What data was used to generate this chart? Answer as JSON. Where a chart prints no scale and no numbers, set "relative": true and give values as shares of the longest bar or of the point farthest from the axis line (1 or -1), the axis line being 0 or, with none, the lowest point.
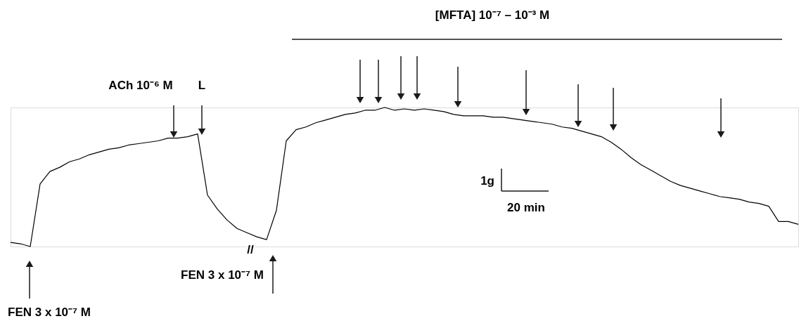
{
  "chart_data": {
    "type": "line",
    "relative": true,
    "color": "#000000",
    "categories": [
      null,
      null,
      null,
      null,
      null,
      null,
      null,
      null,
      null,
      null,
      null,
      null,
      null,
      null,
      null,
      null,
      null,
      null,
      null,
      null,
      null,
      null,
      null,
      null,
      null,
      null,
      null,
      null,
      null,
      null,
      null,
      null,
      null,
      null,
      null,
      null,
      null,
      null,
      null,
      null,
      null,
      null,
      null,
      null,
      null,
      null,
      null,
      null,
      null,
      null,
      null,
      null,
      null,
      null,
      null,
      null,
      null,
      null,
      null,
      null,
      null,
      null,
      null,
      null,
      null,
      null,
      null,
      null,
      null,
      null,
      null,
      null,
      null,
      null,
      null,
      null,
      null,
      null,
      null,
      null,
      null
    ],
    "values": [
      0.03,
      0.02,
      0,
      0.45,
      0.54,
      0.57,
      0.61,
      0.63,
      0.66,
      0.68,
      0.7,
      0.71,
      0.73,
      0.74,
      0.75,
      0.76,
      0.78,
      0.78,
      0.79,
      0.81,
      0.37,
      0.27,
      0.19,
      0.13,
      0.1,
      0.07,
      0.05,
      0.26,
      0.76,
      0.84,
      0.86,
      0.89,
      0.91,
      0.93,
      0.95,
      0.96,
      0.98,
      0.98,
      1,
      0.98,
      0.99,
      0.98,
      0.99,
      0.98,
      0.97,
      0.95,
      0.94,
      0.94,
      0.94,
      0.93,
      0.93,
      0.92,
      0.91,
      0.9,
      0.89,
      0.88,
      0.86,
      0.85,
      0.83,
      0.81,
      0.79,
      0.75,
      0.7,
      0.64,
      0.59,
      0.55,
      0.51,
      0.47,
      0.44,
      0.42,
      0.4,
      0.38,
      0.36,
      0.35,
      0.34,
      0.32,
      0.31,
      0.29,
      0.18,
      0.18,
      0.16
    ],
    "annotations": [
      "[MFTA] 10⁻⁷ – 10⁻³ M",
      "ACh 10⁻⁶ M",
      "L",
      "1g",
      "20 min",
      "FEN 3 x 10⁻⁷ M",
      "FEN 3 x 10⁻⁷ M",
      "//"
    ]
  }
}
